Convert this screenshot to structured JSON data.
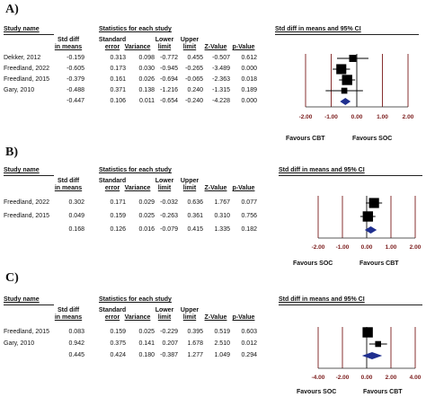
{
  "header": {
    "study_name": "Study name",
    "statistics_for_each_study": "Statistics for each study",
    "forest_title": "Std diff in means and 95% CI",
    "col_std_diff_1": "Std diff",
    "col_std_diff_2": "in means",
    "col_se_1": "Standard",
    "col_se_2": "error",
    "col_variance": "Variance",
    "col_lower_1": "Lower",
    "col_lower_2": "limit",
    "col_upper_1": "Upper",
    "col_upper_2": "limit",
    "col_z": "Z-Value",
    "col_p": "p-Value"
  },
  "panels": [
    {
      "label": "A)",
      "favours_left": "Favours CBT",
      "favours_right": "Favours SOC",
      "rows": [
        {
          "study": "Dekker, 2012",
          "std_diff": "-0.159",
          "se": "0.313",
          "variance": "0.098",
          "lower": "-0.772",
          "upper": "0.455",
          "z": "-0.507",
          "p": "0.612"
        },
        {
          "study": "Freedland, 2022",
          "std_diff": "-0.605",
          "se": "0.173",
          "variance": "0.030",
          "lower": "-0.945",
          "upper": "-0.265",
          "z": "-3.489",
          "p": "0.000"
        },
        {
          "study": "Freedland, 2015",
          "std_diff": "-0.379",
          "se": "0.161",
          "variance": "0.026",
          "lower": "-0.694",
          "upper": "-0.065",
          "z": "-2.363",
          "p": "0.018"
        },
        {
          "study": "Gary, 2010",
          "std_diff": "-0.488",
          "se": "0.371",
          "variance": "0.138",
          "lower": "-1.216",
          "upper": "0.240",
          "z": "-1.315",
          "p": "0.189"
        },
        {
          "study": "",
          "std_diff": "-0.447",
          "se": "0.106",
          "variance": "0.011",
          "lower": "-0.654",
          "upper": "-0.240",
          "z": "-4.228",
          "p": "0.000"
        }
      ]
    },
    {
      "label": "B)",
      "favours_left": "Favours SOC",
      "favours_right": "Favours CBT",
      "rows": [
        {
          "study": "Freedland, 2022",
          "std_diff": "0.302",
          "se": "0.171",
          "variance": "0.029",
          "lower": "-0.032",
          "upper": "0.636",
          "z": "1.767",
          "p": "0.077"
        },
        {
          "study": "Freedland, 2015",
          "std_diff": "0.049",
          "se": "0.159",
          "variance": "0.025",
          "lower": "-0.263",
          "upper": "0.361",
          "z": "0.310",
          "p": "0.756"
        },
        {
          "study": "",
          "std_diff": "0.168",
          "se": "0.126",
          "variance": "0.016",
          "lower": "-0.079",
          "upper": "0.415",
          "z": "1.335",
          "p": "0.182"
        }
      ]
    },
    {
      "label": "C)",
      "favours_left": "Favours SOC",
      "favours_right": "Favours CBT",
      "rows": [
        {
          "study": "Freedland, 2015",
          "std_diff": "0.083",
          "se": "0.159",
          "variance": "0.025",
          "lower": "-0.229",
          "upper": "0.395",
          "z": "0.519",
          "p": "0.603"
        },
        {
          "study": "Gary, 2010",
          "std_diff": "0.942",
          "se": "0.375",
          "variance": "0.141",
          "lower": "0.207",
          "upper": "1.678",
          "z": "2.510",
          "p": "0.012"
        },
        {
          "study": "",
          "std_diff": "0.445",
          "se": "0.424",
          "variance": "0.180",
          "lower": "-0.387",
          "upper": "1.277",
          "z": "1.049",
          "p": "0.294"
        }
      ]
    }
  ],
  "chart_data": [
    {
      "type": "scatter",
      "subtype": "forest",
      "xlim": [
        -2,
        2
      ],
      "ticks": [
        "-2.00",
        "-1.00",
        "0.00",
        "1.00",
        "2.00"
      ],
      "tick_values": [
        -2,
        -1,
        0,
        1,
        2
      ],
      "studies": [
        {
          "name": "Dekker, 2012",
          "estimate": -0.159,
          "lower": -0.772,
          "upper": 0.455,
          "weight": 0.313
        },
        {
          "name": "Freedland, 2022",
          "estimate": -0.605,
          "lower": -0.945,
          "upper": -0.265,
          "weight": 0.173
        },
        {
          "name": "Freedland, 2015",
          "estimate": -0.379,
          "lower": -0.694,
          "upper": -0.065,
          "weight": 0.161
        },
        {
          "name": "Gary, 2010",
          "estimate": -0.488,
          "lower": -1.216,
          "upper": 0.24,
          "weight": 0.371
        }
      ],
      "summary": {
        "estimate": -0.447,
        "lower": -0.654,
        "upper": -0.24
      }
    },
    {
      "type": "scatter",
      "subtype": "forest",
      "xlim": [
        -2,
        2
      ],
      "ticks": [
        "-2.00",
        "-1.00",
        "0.00",
        "1.00",
        "2.00"
      ],
      "tick_values": [
        -2,
        -1,
        0,
        1,
        2
      ],
      "studies": [
        {
          "name": "Freedland, 2022",
          "estimate": 0.302,
          "lower": -0.032,
          "upper": 0.636,
          "weight": 0.171
        },
        {
          "name": "Freedland, 2015",
          "estimate": 0.049,
          "lower": -0.263,
          "upper": 0.361,
          "weight": 0.159
        }
      ],
      "summary": {
        "estimate": 0.168,
        "lower": -0.079,
        "upper": 0.415
      }
    },
    {
      "type": "scatter",
      "subtype": "forest",
      "xlim": [
        -4,
        4
      ],
      "ticks": [
        "-4.00",
        "-2.00",
        "0.00",
        "2.00",
        "4.00"
      ],
      "tick_values": [
        -4,
        -2,
        0,
        2,
        4
      ],
      "studies": [
        {
          "name": "Freedland, 2015",
          "estimate": 0.083,
          "lower": -0.229,
          "upper": 0.395,
          "weight": 0.159
        },
        {
          "name": "Gary, 2010",
          "estimate": 0.942,
          "lower": 0.207,
          "upper": 1.678,
          "weight": 0.375
        }
      ],
      "summary": {
        "estimate": 0.445,
        "lower": -0.387,
        "upper": 1.277
      }
    }
  ],
  "colors": {
    "summary_diamond": "#1f2f8f",
    "axis_line": "#7a1a1a",
    "marker": "#000000"
  }
}
